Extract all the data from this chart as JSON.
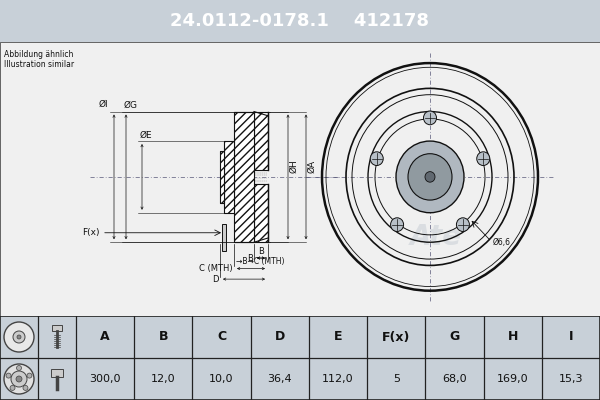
{
  "title_part_number": "24.0112-0178.1",
  "title_ref_number": "412178",
  "title_bg_color": "#1955b5",
  "title_text_color": "#ffffff",
  "subtitle_line1": "Abbildung ähnlich",
  "subtitle_line2": "Illustration similar",
  "bg_color": "#c8d0d8",
  "white_bg": "#f0f0f0",
  "table_headers": [
    "A",
    "B",
    "C",
    "D",
    "E",
    "F(x)",
    "G",
    "H",
    "I"
  ],
  "table_values": [
    "300,0",
    "12,0",
    "10,0",
    "36,4",
    "112,0",
    "5",
    "68,0",
    "169,0",
    "15,3"
  ],
  "label_I": "ØI",
  "label_G": "ØG",
  "label_E": "ØE",
  "label_H": "ØH",
  "label_A": "ØA",
  "label_Fx": "F(x)",
  "label_B": "B",
  "label_C": "C (MTH)",
  "label_D": "D",
  "hole_label": "Ø6,6",
  "table_border_color": "#222222",
  "line_color": "#111111",
  "dim_line_color": "#111111",
  "hatch_color": "#111111"
}
